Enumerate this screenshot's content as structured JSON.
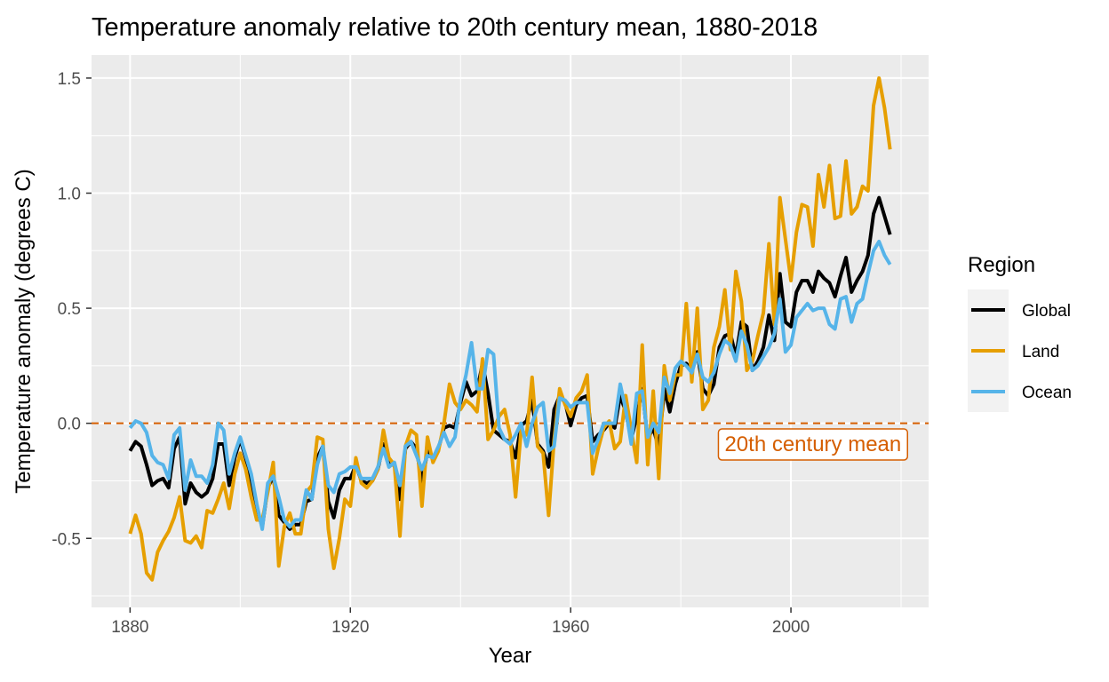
{
  "chart_data": {
    "type": "line",
    "title": "Temperature anomaly relative to 20th century mean, 1880-2018",
    "xlabel": "Year",
    "ylabel": "Temperature anomaly (degrees C)",
    "xlim": [
      1873,
      2025
    ],
    "ylim": [
      -0.8,
      1.6
    ],
    "x_ticks": [
      1880,
      1920,
      1960,
      2000
    ],
    "y_ticks": [
      -0.5,
      0.0,
      0.5,
      1.0,
      1.5
    ],
    "y_tick_labels": [
      "-0.5",
      "0.0",
      "0.5",
      "1.0",
      "1.5"
    ],
    "grid": true,
    "legend": {
      "title": "Region",
      "position": "right"
    },
    "colors": {
      "Global": "#000000",
      "Land": "#E69F00",
      "Ocean": "#56B4E9",
      "reference": "#D55E00",
      "panel": "#EBEBEB",
      "grid": "#FFFFFF"
    },
    "reference_line": {
      "y": 0.0,
      "style": "dashed",
      "label": "20th century mean",
      "label_x": 2004,
      "label_y": -0.09
    },
    "x_start": 1880,
    "series": [
      {
        "name": "Global",
        "values": [
          -0.12,
          -0.08,
          -0.1,
          -0.18,
          -0.27,
          -0.25,
          -0.24,
          -0.28,
          -0.11,
          -0.06,
          -0.35,
          -0.26,
          -0.3,
          -0.32,
          -0.3,
          -0.24,
          -0.09,
          -0.09,
          -0.27,
          -0.15,
          -0.07,
          -0.15,
          -0.25,
          -0.37,
          -0.45,
          -0.28,
          -0.23,
          -0.4,
          -0.43,
          -0.46,
          -0.44,
          -0.44,
          -0.34,
          -0.33,
          -0.15,
          -0.1,
          -0.34,
          -0.41,
          -0.29,
          -0.24,
          -0.24,
          -0.18,
          -0.25,
          -0.26,
          -0.25,
          -0.2,
          -0.09,
          -0.18,
          -0.18,
          -0.33,
          -0.11,
          -0.08,
          -0.11,
          -0.26,
          -0.12,
          -0.15,
          -0.11,
          -0.02,
          -0.01,
          -0.02,
          0.09,
          0.18,
          0.12,
          0.14,
          0.26,
          0.13,
          -0.03,
          -0.05,
          -0.07,
          -0.08,
          -0.15,
          -0.01,
          0.01,
          0.1,
          -0.09,
          -0.12,
          -0.19,
          0.06,
          0.12,
          0.09,
          -0.01,
          0.08,
          0.11,
          0.12,
          -0.08,
          -0.05,
          -0.03,
          0.0,
          -0.02,
          0.12,
          0.05,
          -0.07,
          0.03,
          0.15,
          -0.07,
          -0.02,
          -0.11,
          0.15,
          0.05,
          0.17,
          0.25,
          0.26,
          0.23,
          0.31,
          0.15,
          0.12,
          0.17,
          0.33,
          0.38,
          0.39,
          0.29,
          0.44,
          0.42,
          0.23,
          0.27,
          0.33,
          0.47,
          0.36,
          0.65,
          0.44,
          0.42,
          0.57,
          0.62,
          0.62,
          0.57,
          0.66,
          0.63,
          0.61,
          0.55,
          0.64,
          0.72,
          0.57,
          0.62,
          0.66,
          0.73,
          0.91,
          0.98,
          0.9,
          0.82
        ]
      },
      {
        "name": "Land",
        "values": [
          -0.48,
          -0.4,
          -0.48,
          -0.65,
          -0.68,
          -0.56,
          -0.51,
          -0.47,
          -0.41,
          -0.32,
          -0.51,
          -0.52,
          -0.49,
          -0.54,
          -0.38,
          -0.39,
          -0.33,
          -0.26,
          -0.37,
          -0.22,
          -0.13,
          -0.2,
          -0.32,
          -0.42,
          -0.42,
          -0.3,
          -0.17,
          -0.62,
          -0.45,
          -0.39,
          -0.48,
          -0.48,
          -0.3,
          -0.27,
          -0.06,
          -0.07,
          -0.46,
          -0.63,
          -0.5,
          -0.33,
          -0.36,
          -0.15,
          -0.26,
          -0.28,
          -0.25,
          -0.2,
          -0.03,
          -0.15,
          -0.18,
          -0.49,
          -0.1,
          -0.03,
          -0.05,
          -0.36,
          -0.06,
          -0.17,
          -0.12,
          0.0,
          0.17,
          0.09,
          0.06,
          0.1,
          0.08,
          0.05,
          0.28,
          -0.07,
          -0.03,
          0.03,
          0.06,
          -0.05,
          -0.32,
          -0.03,
          -0.05,
          0.2,
          -0.1,
          -0.13,
          -0.4,
          -0.07,
          0.15,
          0.08,
          0.03,
          0.11,
          0.14,
          0.21,
          -0.22,
          -0.11,
          -0.02,
          0.01,
          -0.11,
          -0.08,
          0.12,
          -0.03,
          -0.17,
          0.34,
          -0.18,
          0.14,
          -0.24,
          0.25,
          0.1,
          0.21,
          0.21,
          0.52,
          0.18,
          0.5,
          0.06,
          0.1,
          0.33,
          0.42,
          0.58,
          0.32,
          0.66,
          0.53,
          0.23,
          0.27,
          0.38,
          0.48,
          0.78,
          0.43,
          0.98,
          0.8,
          0.62,
          0.83,
          0.95,
          0.94,
          0.77,
          1.08,
          0.94,
          1.12,
          0.89,
          0.9,
          1.14,
          0.91,
          0.94,
          1.03,
          1.01,
          1.38,
          1.5,
          1.37,
          1.19
        ]
      },
      {
        "name": "Ocean",
        "values": [
          -0.02,
          0.01,
          0.0,
          -0.04,
          -0.14,
          -0.17,
          -0.18,
          -0.24,
          -0.05,
          -0.02,
          -0.29,
          -0.16,
          -0.23,
          -0.23,
          -0.26,
          -0.18,
          0.0,
          -0.03,
          -0.22,
          -0.13,
          -0.06,
          -0.14,
          -0.22,
          -0.35,
          -0.46,
          -0.26,
          -0.23,
          -0.32,
          -0.42,
          -0.45,
          -0.42,
          -0.42,
          -0.29,
          -0.33,
          -0.18,
          -0.1,
          -0.27,
          -0.3,
          -0.22,
          -0.21,
          -0.19,
          -0.19,
          -0.24,
          -0.24,
          -0.24,
          -0.19,
          -0.11,
          -0.19,
          -0.17,
          -0.27,
          -0.1,
          -0.08,
          -0.14,
          -0.2,
          -0.14,
          -0.15,
          -0.1,
          -0.04,
          -0.1,
          -0.06,
          0.11,
          0.21,
          0.35,
          0.15,
          0.15,
          0.32,
          0.3,
          -0.02,
          -0.07,
          -0.09,
          -0.05,
          0.0,
          -0.1,
          0.0,
          0.07,
          0.09,
          -0.12,
          -0.1,
          0.11,
          0.1,
          0.07,
          0.09,
          0.09,
          0.09,
          -0.13,
          -0.07,
          0.0,
          0.0,
          0.0,
          0.17,
          0.06,
          -0.09,
          0.13,
          0.14,
          -0.06,
          0.0,
          -0.04,
          0.2,
          0.13,
          0.24,
          0.27,
          0.25,
          0.22,
          0.3,
          0.2,
          0.18,
          0.22,
          0.3,
          0.36,
          0.34,
          0.27,
          0.4,
          0.34,
          0.23,
          0.25,
          0.29,
          0.33,
          0.39,
          0.54,
          0.31,
          0.34,
          0.46,
          0.49,
          0.52,
          0.49,
          0.5,
          0.5,
          0.43,
          0.41,
          0.54,
          0.55,
          0.44,
          0.52,
          0.54,
          0.65,
          0.75,
          0.79,
          0.73,
          0.69
        ]
      }
    ]
  }
}
